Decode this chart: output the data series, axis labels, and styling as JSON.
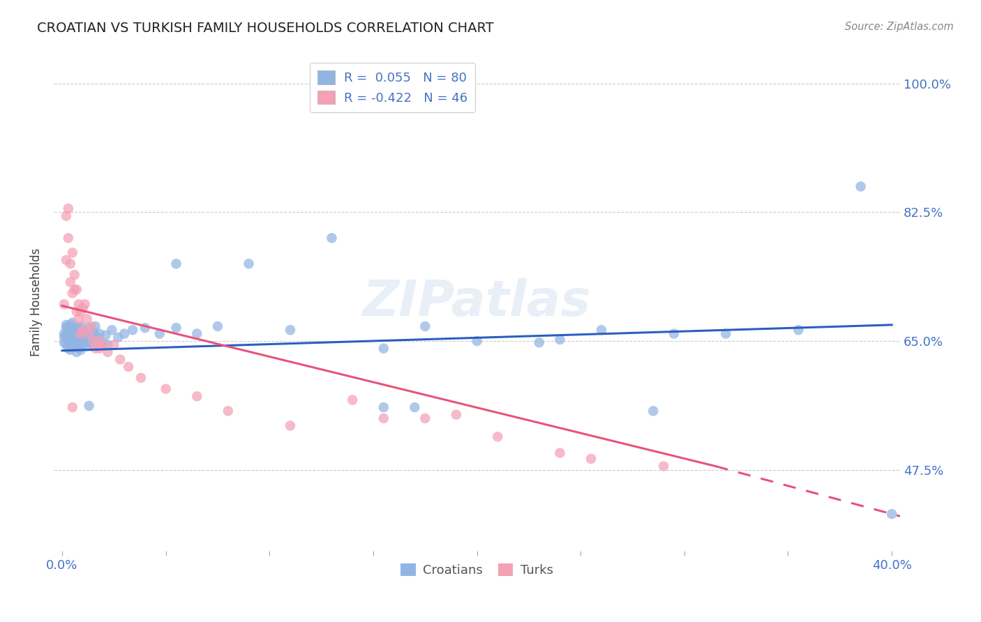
{
  "title": "CROATIAN VS TURKISH FAMILY HOUSEHOLDS CORRELATION CHART",
  "source": "Source: ZipAtlas.com",
  "ylabel": "Family Households",
  "yticks": [
    "100.0%",
    "82.5%",
    "65.0%",
    "47.5%"
  ],
  "ytick_vals": [
    1.0,
    0.825,
    0.65,
    0.475
  ],
  "xlim": [
    -0.004,
    0.404
  ],
  "ylim": [
    0.365,
    1.04
  ],
  "croatians_R": 0.055,
  "croatians_N": 80,
  "turks_R": -0.422,
  "turks_N": 46,
  "blue_color": "#92B4E3",
  "pink_color": "#F4A0B5",
  "line_blue": "#2B5FC0",
  "line_pink": "#E8537A",
  "accent_blue": "#4472C4",
  "text_color": "#404040",
  "grid_color": "#CCCCCC",
  "cr_line_x0": 0.0,
  "cr_line_x1": 0.4,
  "cr_line_y0": 0.637,
  "cr_line_y1": 0.672,
  "tk_line_x0": 0.0,
  "tk_line_x1_solid": 0.315,
  "tk_line_x1_dash": 0.404,
  "tk_line_y0": 0.698,
  "tk_line_y1_solid": 0.48,
  "tk_line_y1_dash": 0.412,
  "croatians_x": [
    0.001,
    0.001,
    0.001,
    0.002,
    0.002,
    0.002,
    0.002,
    0.003,
    0.003,
    0.003,
    0.003,
    0.004,
    0.004,
    0.004,
    0.004,
    0.005,
    0.005,
    0.005,
    0.005,
    0.005,
    0.006,
    0.006,
    0.006,
    0.007,
    0.007,
    0.007,
    0.007,
    0.008,
    0.008,
    0.008,
    0.009,
    0.009,
    0.009,
    0.009,
    0.01,
    0.01,
    0.01,
    0.011,
    0.011,
    0.012,
    0.012,
    0.013,
    0.013,
    0.014,
    0.015,
    0.015,
    0.016,
    0.017,
    0.018,
    0.019,
    0.021,
    0.022,
    0.024,
    0.027,
    0.03,
    0.034,
    0.04,
    0.047,
    0.055,
    0.065,
    0.075,
    0.09,
    0.11,
    0.13,
    0.155,
    0.175,
    0.2,
    0.23,
    0.26,
    0.295,
    0.32,
    0.355,
    0.385,
    0.4,
    0.155,
    0.285,
    0.055,
    0.013,
    0.24,
    0.17
  ],
  "croatians_y": [
    0.66,
    0.648,
    0.655,
    0.672,
    0.658,
    0.645,
    0.668,
    0.652,
    0.662,
    0.67,
    0.64,
    0.655,
    0.665,
    0.672,
    0.638,
    0.65,
    0.658,
    0.668,
    0.642,
    0.675,
    0.653,
    0.663,
    0.645,
    0.658,
    0.648,
    0.668,
    0.635,
    0.655,
    0.668,
    0.643,
    0.66,
    0.648,
    0.67,
    0.638,
    0.655,
    0.665,
    0.645,
    0.66,
    0.65,
    0.655,
    0.643,
    0.668,
    0.648,
    0.658,
    0.662,
    0.645,
    0.67,
    0.655,
    0.66,
    0.648,
    0.658,
    0.645,
    0.665,
    0.655,
    0.66,
    0.665,
    0.668,
    0.66,
    0.668,
    0.66,
    0.67,
    0.755,
    0.665,
    0.79,
    0.64,
    0.67,
    0.65,
    0.648,
    0.665,
    0.66,
    0.66,
    0.665,
    0.86,
    0.415,
    0.56,
    0.555,
    0.755,
    0.562,
    0.652,
    0.56
  ],
  "turks_x": [
    0.001,
    0.002,
    0.002,
    0.003,
    0.003,
    0.004,
    0.004,
    0.005,
    0.005,
    0.006,
    0.006,
    0.007,
    0.007,
    0.008,
    0.008,
    0.009,
    0.009,
    0.01,
    0.01,
    0.011,
    0.012,
    0.013,
    0.014,
    0.015,
    0.016,
    0.018,
    0.02,
    0.022,
    0.025,
    0.028,
    0.032,
    0.038,
    0.05,
    0.065,
    0.08,
    0.11,
    0.14,
    0.175,
    0.21,
    0.155,
    0.29,
    0.255,
    0.19,
    0.24,
    0.018,
    0.005
  ],
  "turks_y": [
    0.7,
    0.82,
    0.76,
    0.83,
    0.79,
    0.73,
    0.755,
    0.77,
    0.715,
    0.74,
    0.72,
    0.69,
    0.72,
    0.7,
    0.68,
    0.69,
    0.66,
    0.695,
    0.665,
    0.7,
    0.68,
    0.66,
    0.67,
    0.65,
    0.64,
    0.65,
    0.645,
    0.635,
    0.645,
    0.625,
    0.615,
    0.6,
    0.585,
    0.575,
    0.555,
    0.535,
    0.57,
    0.545,
    0.52,
    0.545,
    0.48,
    0.49,
    0.55,
    0.498,
    0.64,
    0.56
  ]
}
